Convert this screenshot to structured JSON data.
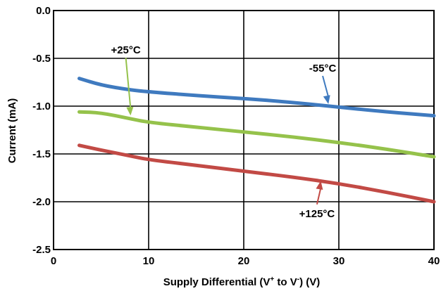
{
  "chart_data": {
    "type": "line",
    "title": "",
    "xlabel": "Supply Differential (V+ to V-) (V)",
    "xlabel_parts": [
      "Supply Differential (V",
      "+",
      " to V",
      "-",
      ") (V)"
    ],
    "ylabel": "Current (mA)",
    "xlim": [
      0,
      40
    ],
    "ylim": [
      -2.5,
      0.0
    ],
    "x_ticks": [
      0,
      10,
      20,
      30,
      40
    ],
    "x_tick_labels": [
      "0",
      "10",
      "20",
      "30",
      "40"
    ],
    "y_ticks": [
      0.0,
      -0.5,
      -1.0,
      -1.5,
      -2.0,
      -2.5
    ],
    "y_tick_labels": [
      "0.0",
      "-0.5",
      "-1.0",
      "-1.5",
      "-2.0",
      "-2.5"
    ],
    "grid": true,
    "series": [
      {
        "name": "-55°C",
        "color": "#3f7abf",
        "x": [
          2.7,
          5,
          8,
          10,
          15,
          20,
          25,
          29,
          35,
          40
        ],
        "y": [
          -0.71,
          -0.78,
          -0.83,
          -0.85,
          -0.89,
          -0.92,
          -0.96,
          -1.0,
          -1.06,
          -1.1
        ]
      },
      {
        "name": "+25°C",
        "color": "#95c24b",
        "x": [
          2.7,
          5,
          8,
          10,
          15,
          20,
          25,
          30,
          35,
          40
        ],
        "y": [
          -1.06,
          -1.07,
          -1.13,
          -1.17,
          -1.22,
          -1.27,
          -1.32,
          -1.38,
          -1.45,
          -1.53
        ]
      },
      {
        "name": "+125°C",
        "color": "#c24a45",
        "x": [
          2.7,
          5,
          8,
          10,
          15,
          20,
          25,
          30,
          35,
          40
        ],
        "y": [
          -1.41,
          -1.46,
          -1.52,
          -1.56,
          -1.62,
          -1.68,
          -1.74,
          -1.81,
          -1.9,
          -2.0
        ]
      }
    ],
    "annotations": [
      {
        "text": "+25°C",
        "series": "+25°C",
        "color": "#95c24b",
        "x": 8.1,
        "y": -1.12,
        "label_x": 7.6,
        "label_y": -0.45
      },
      {
        "text": "-55°C",
        "series": "-55°C",
        "color": "#3f7abf",
        "x": 28.9,
        "y": -1.0,
        "label_x": 28.3,
        "label_y": -0.64
      },
      {
        "text": "+125°C",
        "series": "+125°C",
        "color": "#c24a45",
        "x": 28.1,
        "y": -1.76,
        "label_x": 27.7,
        "label_y": -2.16
      }
    ]
  }
}
